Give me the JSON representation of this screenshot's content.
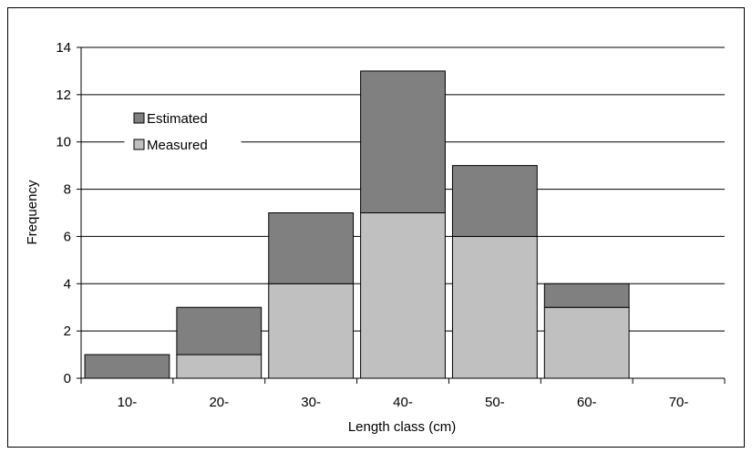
{
  "chart_data": {
    "type": "bar",
    "stacked": true,
    "categories": [
      "10-",
      "20-",
      "30-",
      "40-",
      "50-",
      "60-",
      "70-"
    ],
    "series": [
      {
        "name": "Measured",
        "values": [
          0,
          1,
          4,
          7,
          6,
          3,
          0
        ],
        "color": "#c0c0c0"
      },
      {
        "name": "Estimated",
        "values": [
          1,
          2,
          3,
          6,
          3,
          1,
          0
        ],
        "color": "#808080"
      }
    ],
    "xlabel": "Length class (cm)",
    "ylabel": "Frequency",
    "ylim": [
      0,
      14
    ],
    "yticks": [
      0,
      2,
      4,
      6,
      8,
      10,
      12,
      14
    ],
    "grid": true,
    "legend": {
      "placement": "upper-left",
      "entries": [
        "Estimated",
        "Measured"
      ]
    }
  }
}
